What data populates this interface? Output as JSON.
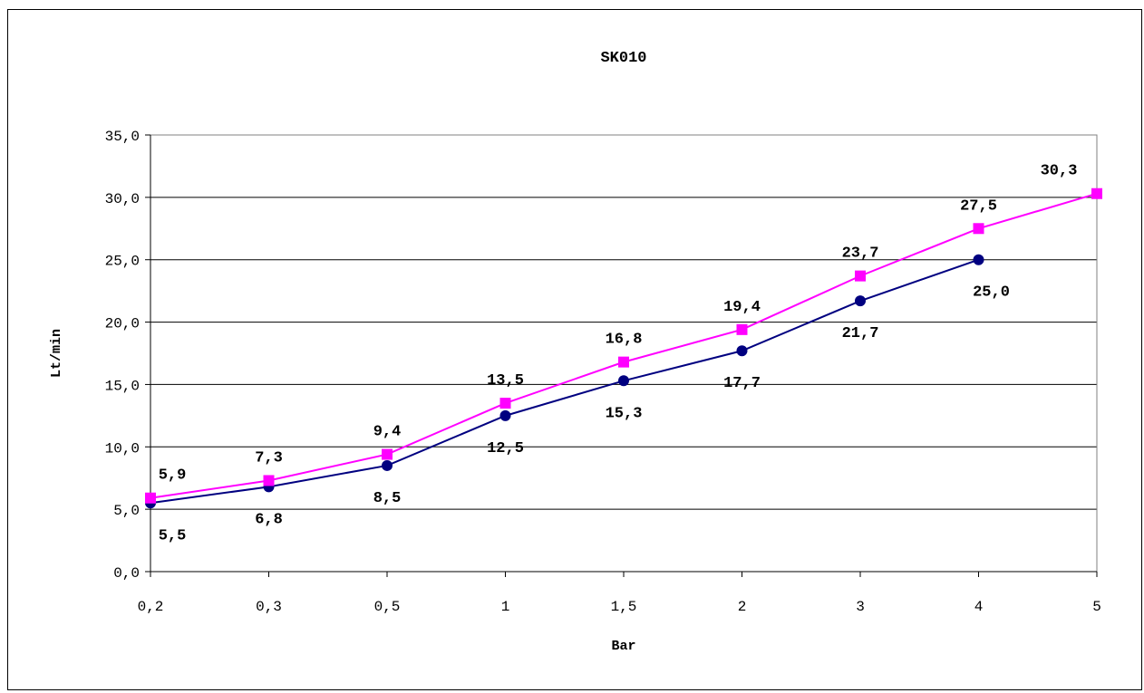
{
  "chart_data": {
    "type": "line",
    "title": "SK010",
    "xlabel": "Bar",
    "ylabel": "Lt/min",
    "categories": [
      "0,2",
      "0,3",
      "0,5",
      "1",
      "1,5",
      "2",
      "3",
      "4",
      "5"
    ],
    "ylim": [
      0,
      35
    ],
    "yticks": [
      0,
      5,
      10,
      15,
      20,
      25,
      30,
      35
    ],
    "ytick_labels": [
      "0,0",
      "5,0",
      "10,0",
      "15,0",
      "20,0",
      "25,0",
      "30,0",
      "35,0"
    ],
    "grid": true,
    "legend": "none",
    "series": [
      {
        "color": "#ff00ff",
        "marker": "square",
        "values": [
          5.9,
          7.3,
          9.4,
          13.5,
          16.8,
          19.4,
          23.7,
          27.5,
          30.3
        ],
        "labels": [
          "5,9",
          "7,3",
          "9,4",
          "13,5",
          "16,8",
          "19,4",
          "23,7",
          "27,5",
          "30,3"
        ],
        "label_position": "above"
      },
      {
        "color": "#000080",
        "marker": "circle",
        "values": [
          5.5,
          6.8,
          8.5,
          12.5,
          15.3,
          17.7,
          21.7,
          25.0,
          null
        ],
        "labels": [
          "5,5",
          "6,8",
          "8,5",
          "12,5",
          "15,3",
          "17,7",
          "21,7",
          "25,0",
          null
        ],
        "label_position": "below"
      }
    ]
  }
}
